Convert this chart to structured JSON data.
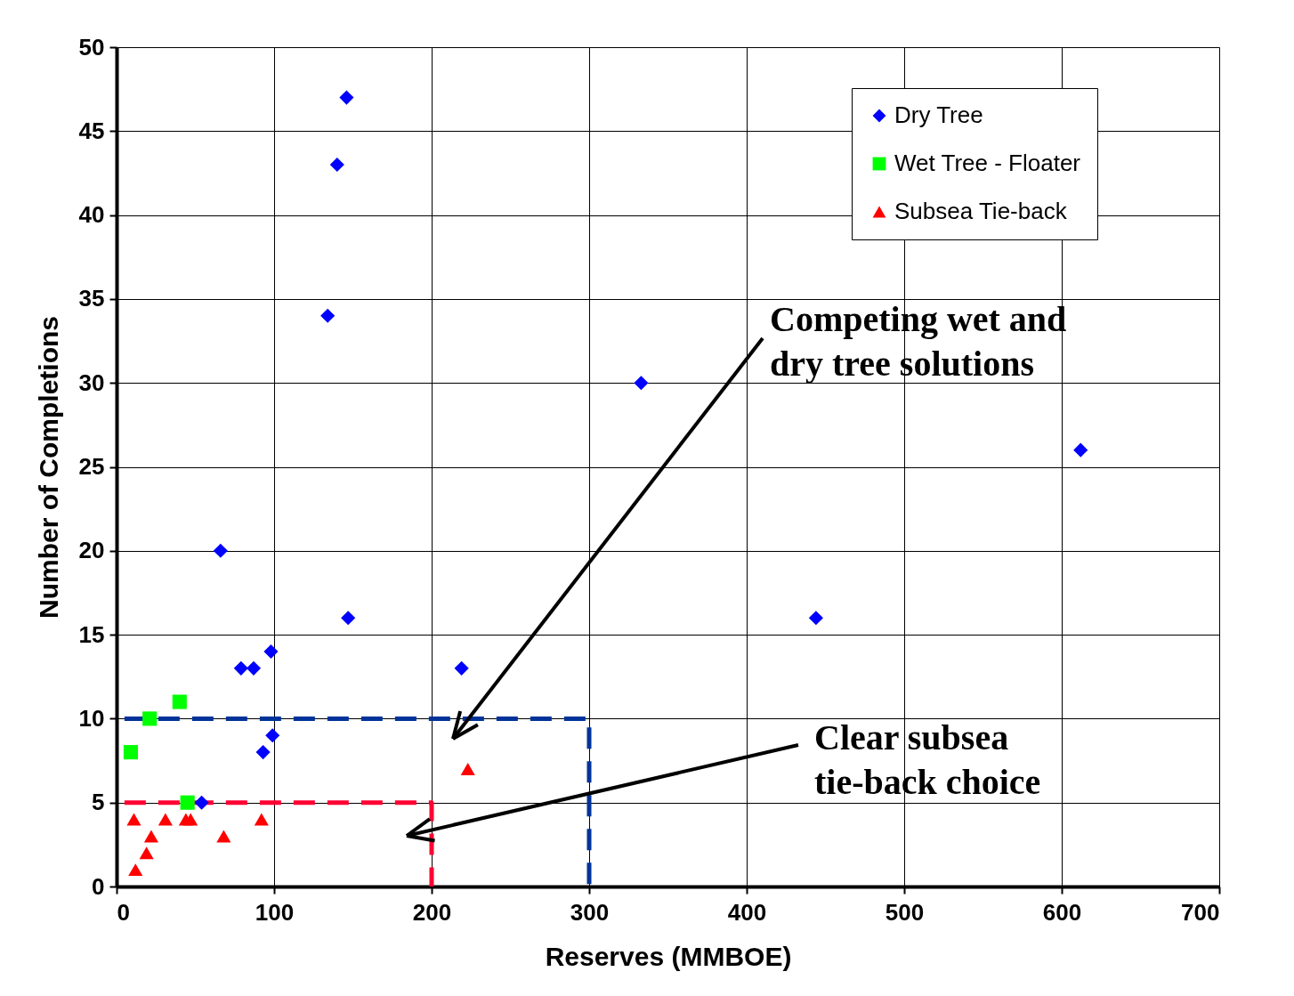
{
  "chart_data": {
    "type": "scatter",
    "xlabel": "Reserves (MMBOE)",
    "ylabel": "Number of Completions",
    "xlim": [
      0,
      700
    ],
    "xticks": [
      0,
      100,
      200,
      300,
      400,
      500,
      600,
      700
    ],
    "ylim": [
      0,
      50
    ],
    "yticks": [
      0,
      5,
      10,
      15,
      20,
      25,
      30,
      35,
      40,
      45,
      50
    ],
    "grid": true,
    "legend": "top right",
    "series": [
      {
        "name": "Dry Tree",
        "color": "#0000ff",
        "marker": "diamond",
        "x": [
          54,
          66,
          79,
          87,
          98,
          93,
          99,
          134,
          140,
          146,
          147,
          219,
          333,
          444,
          612
        ],
        "values": [
          5,
          20,
          13,
          13,
          14,
          8,
          9,
          34,
          43,
          47,
          16,
          13,
          30,
          16,
          26
        ]
      },
      {
        "name": "Wet Tree - Floater",
        "color": "#00ff00",
        "marker": "square",
        "x": [
          9,
          21,
          40,
          45
        ],
        "values": [
          8,
          10,
          11,
          5
        ]
      },
      {
        "name": "Subsea Tie-back",
        "color": "#ff0000",
        "marker": "triangle",
        "x": [
          11,
          31,
          44,
          47,
          92,
          68,
          22,
          19,
          12,
          223
        ],
        "values": [
          4,
          4,
          4,
          4,
          4,
          3,
          3,
          2,
          1,
          7
        ]
      },
      {
        "type": "line",
        "color": "#003399",
        "line_style": "dashed",
        "x": [
          5,
          300,
          300
        ],
        "values": [
          10,
          10,
          0
        ]
      },
      {
        "type": "line",
        "color": "#ff0033",
        "line_style": "dashed",
        "x": [
          5,
          200,
          200
        ],
        "values": [
          5,
          5,
          0
        ]
      }
    ],
    "annotations": [
      "Competing wet and\ndry tree solutions",
      "Clear subsea\ntie-back choice"
    ]
  }
}
